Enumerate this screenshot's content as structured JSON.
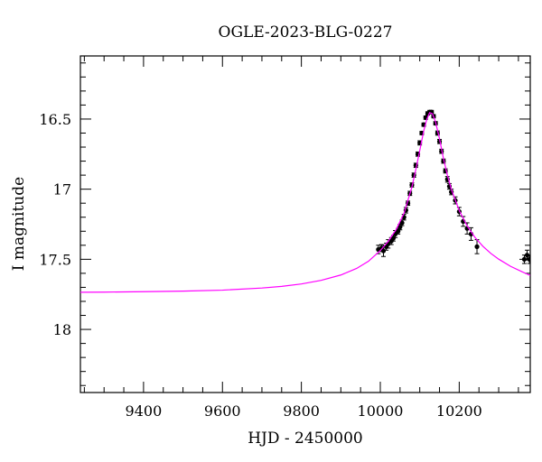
{
  "chart_data": {
    "type": "scatter",
    "title": "OGLE-2023-BLG-0227",
    "xlabel": "HJD - 2450000",
    "ylabel": "I magnitude",
    "xlim": [
      9240,
      10380
    ],
    "ylim": [
      18.45,
      16.05
    ],
    "y_inverted": true,
    "x_ticks": [
      9400,
      9600,
      9800,
      10000,
      10200
    ],
    "x_tick_labels": [
      "9400",
      "9600",
      "9800",
      "10000",
      "10200"
    ],
    "y_ticks": [
      16.5,
      17,
      17.5,
      18
    ],
    "y_tick_labels": [
      "16.5",
      "17",
      "17.5",
      "18"
    ],
    "grid": false,
    "series": [
      {
        "kind": "model",
        "color": "#ff00ff",
        "x": [
          9240,
          9300,
          9400,
          9500,
          9600,
          9700,
          9750,
          9800,
          9850,
          9900,
          9940,
          9970,
          10000,
          10020,
          10040,
          10060,
          10080,
          10090,
          10100,
          10110,
          10118,
          10125,
          10132,
          10140,
          10150,
          10160,
          10170,
          10180,
          10200,
          10220,
          10240,
          10260,
          10280,
          10300,
          10330,
          10360,
          10380
        ],
        "y": [
          17.735,
          17.734,
          17.731,
          17.727,
          17.72,
          17.705,
          17.693,
          17.676,
          17.65,
          17.612,
          17.565,
          17.514,
          17.438,
          17.372,
          17.288,
          17.172,
          16.986,
          16.86,
          16.725,
          16.585,
          16.5,
          16.455,
          16.462,
          16.52,
          16.64,
          16.78,
          16.9,
          17.0,
          17.152,
          17.262,
          17.344,
          17.407,
          17.458,
          17.499,
          17.55,
          17.59,
          17.615
        ]
      },
      {
        "kind": "data",
        "color": "#000000",
        "x": [
          9995,
          10003,
          10008,
          10015,
          10020,
          10028,
          10033,
          10038,
          10045,
          10050,
          10055,
          10060,
          10065,
          10070,
          10075,
          10080,
          10085,
          10090,
          10095,
          10100,
          10105,
          10110,
          10115,
          10120,
          10125,
          10130,
          10135,
          10140,
          10145,
          10150,
          10155,
          10160,
          10165,
          10170,
          10175,
          10180,
          10190,
          10200,
          10210,
          10220,
          10230,
          10245,
          10365,
          10372,
          10378
        ],
        "y": [
          17.43,
          17.42,
          17.44,
          17.41,
          17.39,
          17.37,
          17.35,
          17.32,
          17.3,
          17.27,
          17.24,
          17.2,
          17.15,
          17.1,
          17.03,
          16.97,
          16.9,
          16.83,
          16.75,
          16.67,
          16.6,
          16.54,
          16.49,
          16.46,
          16.45,
          16.45,
          16.48,
          16.53,
          16.6,
          16.66,
          16.73,
          16.8,
          16.87,
          16.93,
          16.98,
          17.02,
          17.08,
          17.16,
          17.23,
          17.28,
          17.32,
          17.41,
          17.5,
          17.47,
          17.5
        ],
        "err": [
          0.03,
          0.025,
          0.04,
          0.025,
          0.03,
          0.025,
          0.02,
          0.025,
          0.02,
          0.02,
          0.02,
          0.02,
          0.02,
          0.015,
          0.015,
          0.015,
          0.015,
          0.015,
          0.015,
          0.015,
          0.012,
          0.012,
          0.012,
          0.012,
          0.012,
          0.012,
          0.012,
          0.012,
          0.015,
          0.015,
          0.015,
          0.015,
          0.015,
          0.02,
          0.02,
          0.02,
          0.025,
          0.03,
          0.035,
          0.04,
          0.045,
          0.05,
          0.03,
          0.035,
          0.03
        ]
      }
    ]
  }
}
